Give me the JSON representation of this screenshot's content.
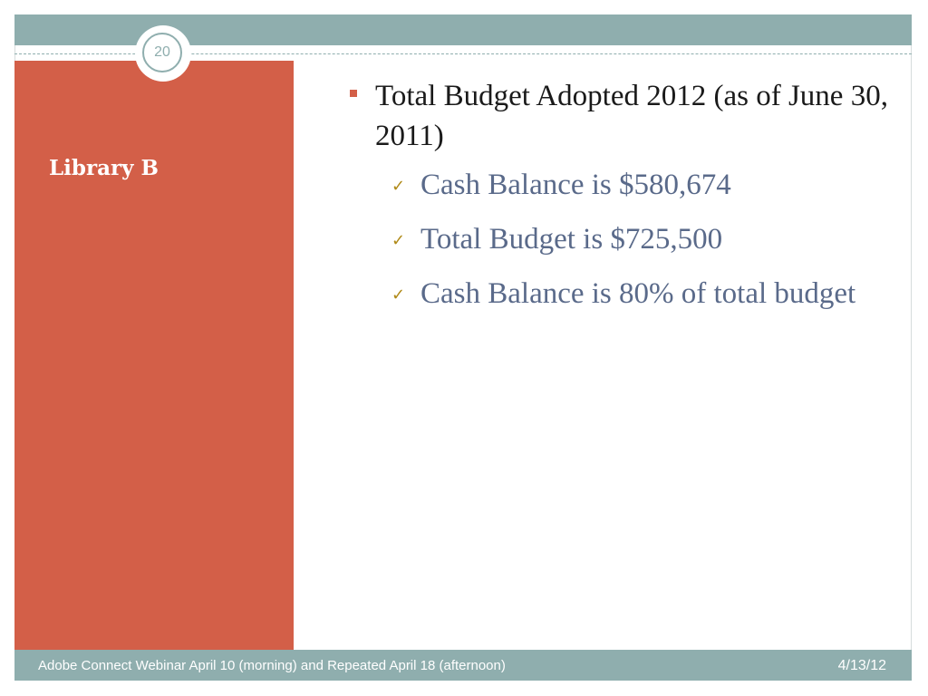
{
  "slide": {
    "number": "20",
    "side_title": "Library B"
  },
  "content": {
    "main_bullet": "Total Budget Adopted 2012 (as of June 30, 2011)",
    "sub_bullets": [
      "Cash Balance is $580,674",
      "Total Budget is $725,500",
      "Cash Balance is 80% of total budget"
    ]
  },
  "footer": {
    "text": "Adobe Connect Webinar April 10 (morning) and Repeated April 18 (afternoon)",
    "date": "4/13/12"
  },
  "icons": {
    "main_bullet": "square-bullet-icon",
    "sub_bullet": "checkmark-icon"
  },
  "colors": {
    "accent_teal": "#8faeae",
    "side_panel": "#d35f48",
    "sub_text": "#5a6a8a",
    "check": "#b08a18"
  }
}
